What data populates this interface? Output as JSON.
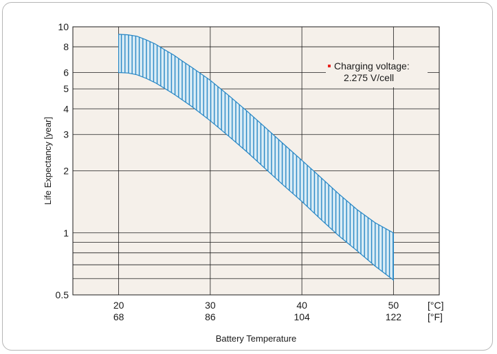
{
  "chart_data": {
    "type": "area",
    "xlabel": "Battery Temperature",
    "ylabel": "Life Expectancy [year]",
    "y_scale": "log",
    "xlim": [
      15,
      55
    ],
    "ylim": [
      0.5,
      10
    ],
    "x_ticks": [
      {
        "c": 20,
        "c_label": "20",
        "f_label": "68"
      },
      {
        "c": 30,
        "c_label": "30",
        "f_label": "86"
      },
      {
        "c": 40,
        "c_label": "40",
        "f_label": "104"
      },
      {
        "c": 50,
        "c_label": "50",
        "f_label": "122"
      }
    ],
    "x_unit_c": "[°C]",
    "x_unit_f": "[°F]",
    "y_tick_labels": [
      {
        "v": 10,
        "label": "10"
      },
      {
        "v": 8,
        "label": "8"
      },
      {
        "v": 6,
        "label": "6"
      },
      {
        "v": 5,
        "label": "5"
      },
      {
        "v": 4,
        "label": "4"
      },
      {
        "v": 3,
        "label": "3"
      },
      {
        "v": 2,
        "label": "2"
      },
      {
        "v": 1,
        "label": "1"
      },
      {
        "v": 0.5,
        "label": "0.5"
      }
    ],
    "y_gridlines": [
      10,
      8,
      6,
      5,
      4,
      3,
      2,
      1,
      0.9,
      0.8,
      0.7,
      0.6
    ],
    "grid": true,
    "series": [
      {
        "x": [
          20,
          21,
          22,
          23,
          24,
          25,
          26,
          27,
          28,
          30,
          32,
          34,
          36,
          38,
          40,
          42,
          44,
          46,
          48,
          50
        ],
        "y": [
          9.2,
          9.15,
          9.0,
          8.65,
          8.25,
          7.75,
          7.3,
          6.8,
          6.35,
          5.5,
          4.65,
          3.9,
          3.25,
          2.7,
          2.25,
          1.87,
          1.55,
          1.3,
          1.12,
          1.0
        ]
      },
      {
        "x": [
          20,
          21,
          22,
          23,
          24,
          25,
          26,
          27,
          28,
          30,
          32,
          34,
          36,
          38,
          40,
          42,
          44,
          46,
          48,
          50
        ],
        "y": [
          6.0,
          5.97,
          5.85,
          5.62,
          5.35,
          5.03,
          4.72,
          4.4,
          4.1,
          3.5,
          2.95,
          2.47,
          2.05,
          1.7,
          1.42,
          1.17,
          0.97,
          0.82,
          0.69,
          0.59
        ]
      }
    ],
    "annotation": {
      "line1": "Charging voltage:",
      "line2": "2.275 V/cell"
    },
    "colors": {
      "band_fill": "#dbedf6",
      "hatch": "#2585c4",
      "plot_bg": "#f5f0ea",
      "grid": "#1a1a1a",
      "marker": "#e8231e"
    }
  }
}
